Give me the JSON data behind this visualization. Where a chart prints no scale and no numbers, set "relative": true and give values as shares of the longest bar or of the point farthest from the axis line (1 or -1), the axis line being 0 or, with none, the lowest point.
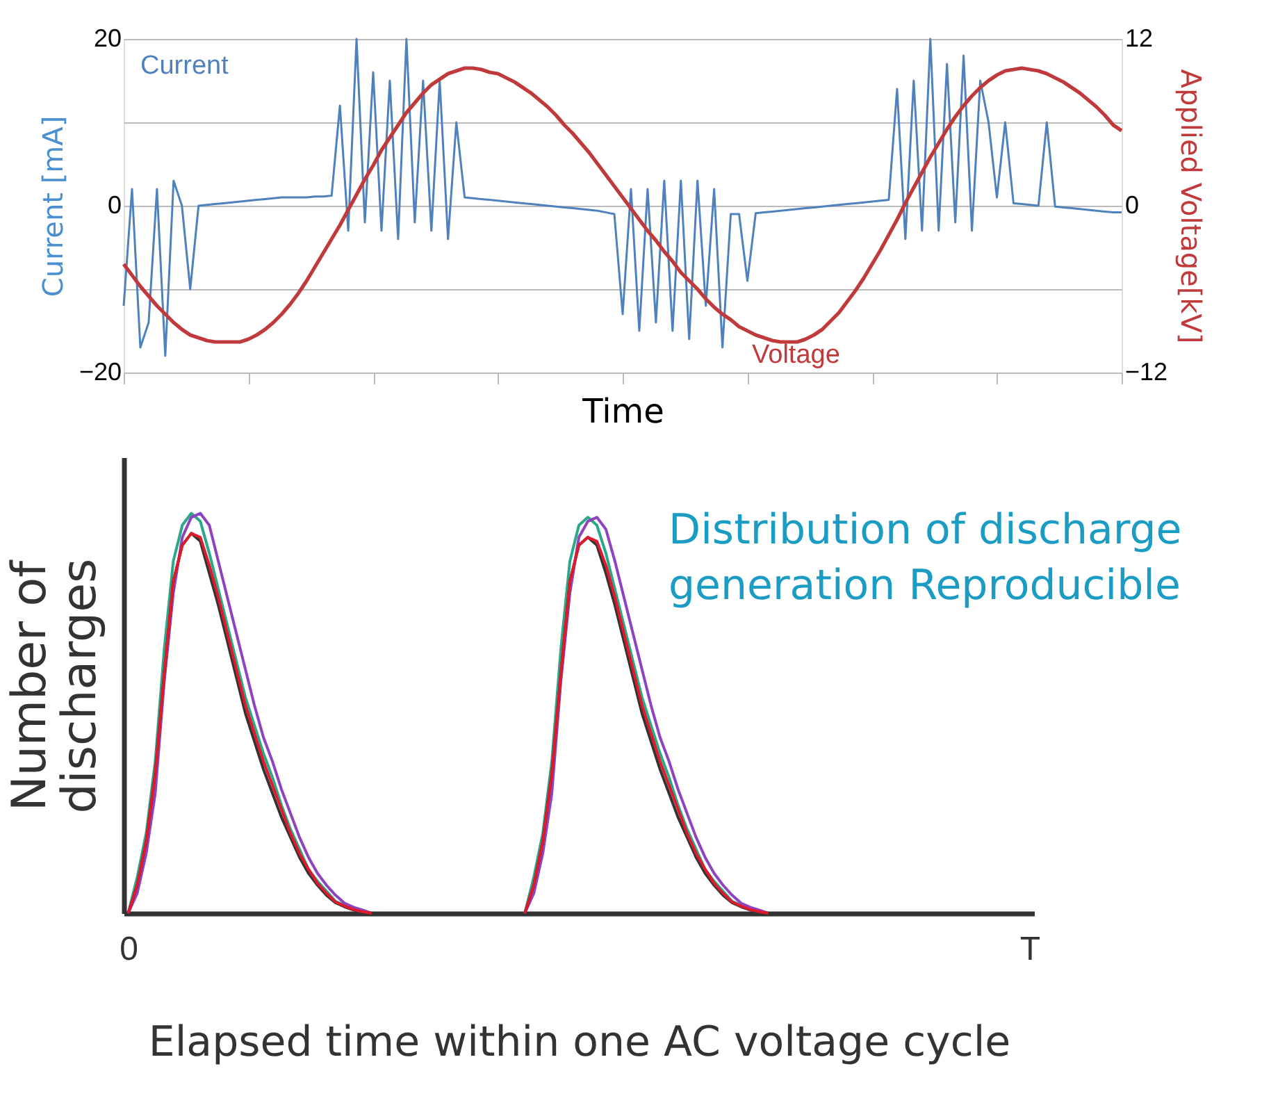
{
  "chart_data": [
    {
      "type": "line",
      "xlabel": "Time",
      "ylabel": "Current   [mA]",
      "y2label": "Applied Voltage[kV]",
      "categories": [
        null,
        null,
        null,
        null,
        null,
        null,
        null,
        null,
        null,
        null,
        null,
        null,
        null,
        null,
        null,
        null,
        null,
        null,
        null,
        null,
        null,
        null,
        null,
        null,
        null,
        null,
        null,
        null,
        null,
        null,
        null,
        null,
        null,
        null,
        null,
        null,
        null,
        null,
        null,
        null,
        null,
        null,
        null,
        null,
        null,
        null,
        null,
        null,
        null,
        null,
        null,
        null,
        null,
        null,
        null,
        null,
        null,
        null,
        null,
        null,
        null,
        null,
        null,
        null,
        null,
        null,
        null,
        null,
        null,
        null,
        null,
        null,
        null,
        null,
        null,
        null,
        null,
        null,
        null,
        null,
        null,
        null,
        null,
        null,
        null,
        null,
        null,
        null,
        null,
        null,
        null,
        null,
        null,
        null,
        null,
        null,
        null,
        null,
        null,
        null,
        null,
        null,
        null,
        null,
        null,
        null,
        null,
        null,
        null,
        null,
        null,
        null,
        null,
        null,
        null,
        null,
        null,
        null,
        null,
        null,
        null
      ],
      "ylim": [
        -20,
        20
      ],
      "yticks": [
        -20,
        {
          "value": -10,
          "label": null
        },
        0,
        {
          "value": 10,
          "label": null
        },
        20
      ],
      "y2lim": [
        -12,
        12
      ],
      "y2ticks": [
        -12,
        0,
        12
      ],
      "grid": "y",
      "tick_labels": "y",
      "series": [
        {
          "name": "Current",
          "color": "#4f81bd",
          "values": [
            -12,
            2,
            -17,
            -14,
            2,
            -18,
            3,
            0,
            -10,
            0,
            0.1,
            0.2,
            0.3,
            0.4,
            0.5,
            0.6,
            0.7,
            0.8,
            0.9,
            1,
            1,
            1,
            1,
            1.1,
            1.1,
            1.2,
            12,
            -3,
            20,
            -2,
            16,
            -3,
            15,
            -4,
            20,
            -2,
            15,
            -3,
            15,
            -4,
            10,
            1,
            0.9,
            0.8,
            0.7,
            0.6,
            0.5,
            0.4,
            0.3,
            0.2,
            0.1,
            0,
            -0.1,
            -0.2,
            -0.3,
            -0.4,
            -0.5,
            -0.6,
            -0.8,
            -1,
            -13,
            2,
            -15,
            2,
            -14,
            3,
            -15,
            3,
            -16,
            3,
            -12,
            2,
            -17,
            -1,
            -1,
            -9,
            -0.9,
            -0.8,
            -0.7,
            -0.6,
            -0.5,
            -0.4,
            -0.3,
            -0.2,
            -0.1,
            0,
            0.1,
            0.2,
            0.3,
            0.4,
            0.5,
            0.6,
            0.7,
            14,
            -4,
            15,
            -3,
            20,
            -3,
            17,
            -2,
            18,
            -3,
            15,
            10,
            1,
            10,
            0.3,
            0.2,
            0.1,
            0,
            10,
            -0.1,
            -0.2,
            -0.3,
            -0.4,
            -0.5,
            -0.6,
            -0.7,
            -0.8,
            -0.8
          ]
        },
        {
          "name": "Voltage",
          "color": "#c0393b",
          "axis": "y2",
          "values": [
            -4.2,
            -5.0,
            -5.8,
            -6.5,
            -7.2,
            -7.8,
            -8.4,
            -8.9,
            -9.3,
            -9.5,
            -9.7,
            -9.8,
            -9.8,
            -9.8,
            -9.8,
            -9.6,
            -9.3,
            -8.9,
            -8.4,
            -7.8,
            -7.1,
            -6.3,
            -5.4,
            -4.4,
            -3.4,
            -2.4,
            -1.4,
            -0.3,
            0.8,
            1.9,
            2.9,
            4.0,
            4.9,
            5.8,
            6.7,
            7.4,
            8.1,
            8.7,
            9.1,
            9.5,
            9.7,
            9.9,
            9.9,
            9.8,
            9.6,
            9.5,
            9.2,
            8.9,
            8.5,
            8.1,
            7.6,
            7.1,
            6.5,
            5.8,
            5.2,
            4.5,
            3.8,
            3.0,
            2.2,
            1.4,
            0.6,
            -0.2,
            -1.0,
            -1.8,
            -2.5,
            -3.3,
            -4.0,
            -4.8,
            -5.4,
            -6.0,
            -6.7,
            -7.3,
            -7.8,
            -8.2,
            -8.7,
            -9.0,
            -9.3,
            -9.5,
            -9.7,
            -9.8,
            -9.8,
            -9.8,
            -9.6,
            -9.3,
            -8.9,
            -8.3,
            -7.7,
            -6.9,
            -6.1,
            -5.2,
            -4.2,
            -3.2,
            -2.1,
            -1.0,
            0.2,
            1.3,
            2.4,
            3.5,
            4.5,
            5.5,
            6.4,
            7.2,
            7.9,
            8.5,
            9.0,
            9.4,
            9.7,
            9.8,
            9.9,
            9.8,
            9.7,
            9.5,
            9.2,
            8.9,
            8.5,
            8.1,
            7.6,
            7.1,
            6.5,
            5.8,
            5.4
          ]
        }
      ]
    },
    {
      "type": "line",
      "xlabel": "Elapsed time within one AC voltage cycle",
      "ylabel": "Number of discharges",
      "relative": true,
      "grid": false,
      "categories": [
        "0",
        null,
        null,
        null,
        null,
        null,
        null,
        null,
        null,
        null,
        null,
        null,
        null,
        null,
        null,
        null,
        null,
        null,
        null,
        null,
        null,
        null,
        null,
        null,
        null,
        null,
        null,
        null,
        null,
        null,
        null,
        null,
        null,
        null,
        null,
        null,
        null,
        null,
        null,
        null,
        null,
        null,
        null,
        null,
        null,
        null,
        null,
        null,
        null,
        null,
        null,
        null,
        null,
        null,
        null,
        null,
        null,
        null,
        null,
        null,
        null,
        null,
        null,
        null,
        null,
        null,
        null,
        null,
        null,
        null,
        null,
        null,
        null,
        null,
        null,
        null,
        null,
        null,
        null,
        null,
        null,
        null,
        null,
        null,
        null,
        null,
        null,
        null,
        null,
        null,
        null,
        null,
        null,
        null,
        null,
        null,
        null,
        null,
        null,
        null,
        "T"
      ],
      "annotations": [
        "Distribution of discharge generation Reproducible"
      ],
      "series": [
        {
          "color": "#2aa889",
          "values": [
            0,
            0.09,
            0.2,
            0.38,
            0.66,
            0.88,
            0.97,
            1,
            0.98,
            0.9,
            0.81,
            0.72,
            0.63,
            0.54,
            0.47,
            0.4,
            0.34,
            0.27,
            0.21,
            0.16,
            0.11,
            0.08,
            0.055,
            0.03,
            0.02,
            0.01,
            0.005,
            0,
            null,
            null,
            null,
            null,
            null,
            null,
            null,
            null,
            null,
            null,
            null,
            null,
            null,
            null,
            null,
            null,
            0,
            0.09,
            0.2,
            0.38,
            0.66,
            0.88,
            0.97,
            0.99,
            0.97,
            0.9,
            0.81,
            0.72,
            0.63,
            0.54,
            0.47,
            0.4,
            0.34,
            0.27,
            0.21,
            0.16,
            0.11,
            0.08,
            0.055,
            0.03,
            0.02,
            0.01,
            null,
            null,
            null,
            null,
            null,
            null,
            null,
            null,
            null,
            null,
            null,
            null,
            null,
            null,
            null,
            null,
            null,
            null,
            null,
            null,
            null,
            null,
            null,
            null,
            null,
            null,
            null,
            null,
            null,
            null,
            null
          ]
        },
        {
          "color": "#8e44c0",
          "values": [
            0,
            0.05,
            0.15,
            0.3,
            0.58,
            0.8,
            0.94,
            0.99,
            1,
            0.97,
            0.88,
            0.79,
            0.7,
            0.61,
            0.52,
            0.44,
            0.38,
            0.31,
            0.25,
            0.19,
            0.14,
            0.1,
            0.07,
            0.045,
            0.025,
            0.015,
            0.008,
            0,
            null,
            null,
            null,
            null,
            null,
            null,
            null,
            null,
            null,
            null,
            null,
            null,
            null,
            null,
            null,
            null,
            0,
            0.05,
            0.15,
            0.3,
            0.58,
            0.8,
            0.94,
            0.98,
            0.99,
            0.96,
            0.88,
            0.79,
            0.7,
            0.61,
            0.52,
            0.44,
            0.38,
            0.31,
            0.25,
            0.19,
            0.14,
            0.1,
            0.07,
            0.045,
            0.025,
            0.015,
            0.008,
            0,
            null,
            null,
            null,
            null,
            null,
            null,
            null,
            null,
            null,
            null,
            null,
            null,
            null,
            null,
            null,
            null,
            null,
            null,
            null,
            null,
            null,
            null,
            null,
            null,
            null,
            null,
            null,
            null,
            null
          ]
        },
        {
          "color": "#333333",
          "values": [
            0,
            0.07,
            0.18,
            0.35,
            0.6,
            0.83,
            0.92,
            0.95,
            0.93,
            0.85,
            0.77,
            0.68,
            0.59,
            0.5,
            0.43,
            0.36,
            0.3,
            0.24,
            0.19,
            0.14,
            0.1,
            0.07,
            0.045,
            0.026,
            0.016,
            0.008,
            0.003,
            0,
            null,
            null,
            null,
            null,
            null,
            null,
            null,
            null,
            null,
            null,
            null,
            null,
            null,
            null,
            null,
            null,
            0,
            0.07,
            0.18,
            0.35,
            0.6,
            0.83,
            0.92,
            0.94,
            0.92,
            0.85,
            0.77,
            0.68,
            0.59,
            0.5,
            0.43,
            0.36,
            0.3,
            0.24,
            0.19,
            0.14,
            0.1,
            0.07,
            0.045,
            0.026,
            0.016,
            0.008,
            0.003,
            0,
            null,
            null,
            null,
            null,
            null,
            null,
            null,
            null,
            null,
            null,
            null,
            null,
            null,
            null,
            null,
            null,
            null,
            null,
            null,
            null,
            null,
            null,
            null,
            null,
            null,
            null,
            null,
            null,
            null
          ]
        },
        {
          "color": "#e0192c",
          "values": [
            0,
            0.07,
            0.18,
            0.35,
            0.6,
            0.83,
            0.92,
            0.95,
            0.94,
            0.87,
            0.79,
            0.7,
            0.61,
            0.52,
            0.45,
            0.38,
            0.32,
            0.26,
            0.2,
            0.15,
            0.11,
            0.075,
            0.05,
            0.028,
            0.018,
            0.009,
            0.004,
            0,
            null,
            null,
            null,
            null,
            null,
            null,
            null,
            null,
            null,
            null,
            null,
            null,
            null,
            null,
            null,
            null,
            0,
            0.07,
            0.18,
            0.35,
            0.6,
            0.83,
            0.92,
            0.94,
            0.93,
            0.87,
            0.79,
            0.7,
            0.61,
            0.52,
            0.45,
            0.38,
            0.32,
            0.26,
            0.2,
            0.15,
            0.11,
            0.075,
            0.05,
            0.028,
            0.018,
            0.009,
            0.004,
            0,
            null,
            null,
            null,
            null,
            null,
            null,
            null,
            null,
            null,
            null,
            null,
            null,
            null,
            null,
            null,
            null,
            null,
            null,
            null,
            null,
            null,
            null,
            null,
            null,
            null,
            null,
            null,
            null,
            null
          ]
        }
      ]
    }
  ]
}
